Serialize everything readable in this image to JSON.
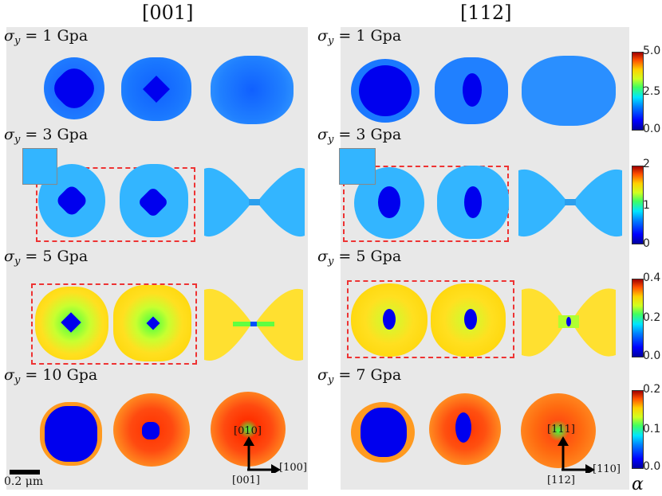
{
  "columns": [
    {
      "title": "[001]"
    },
    {
      "title": "[112]"
    }
  ],
  "rows_left": [
    {
      "sym": "σ",
      "sub": "y",
      "value": "1",
      "unit": "Gpa"
    },
    {
      "sym": "σ",
      "sub": "y",
      "value": "3",
      "unit": "Gpa"
    },
    {
      "sym": "σ",
      "sub": "y",
      "value": "5",
      "unit": "Gpa"
    },
    {
      "sym": "σ",
      "sub": "y",
      "value": "10",
      "unit": "Gpa"
    }
  ],
  "rows_right": [
    {
      "sym": "σ",
      "sub": "y",
      "value": "1",
      "unit": "Gpa"
    },
    {
      "sym": "σ",
      "sub": "y",
      "value": "3",
      "unit": "Gpa"
    },
    {
      "sym": "σ",
      "sub": "y",
      "value": "5",
      "unit": "Gpa"
    },
    {
      "sym": "σ",
      "sub": "y",
      "value": "7",
      "unit": "Gpa"
    }
  ],
  "colorbars": [
    {
      "max": "5.0",
      "mid": "2.5",
      "min": "0.0"
    },
    {
      "max": "2",
      "mid": "1",
      "min": "0"
    },
    {
      "max": "0.4",
      "mid": "0.2",
      "min": "0.0"
    },
    {
      "max": "0.2",
      "mid": "0.1",
      "min": "0.0"
    }
  ],
  "colorbar_label": "α",
  "scale_bar": "0.2 μm",
  "axes_left": {
    "up": "[010]",
    "right": "[100]",
    "origin": "[001]"
  },
  "axes_right": {
    "up": "[111]",
    "right": "[110]",
    "origin": "[112]"
  },
  "colors": {
    "panel": "#e8e8e8",
    "dash": "#ee3333",
    "core": "#0000ee"
  }
}
